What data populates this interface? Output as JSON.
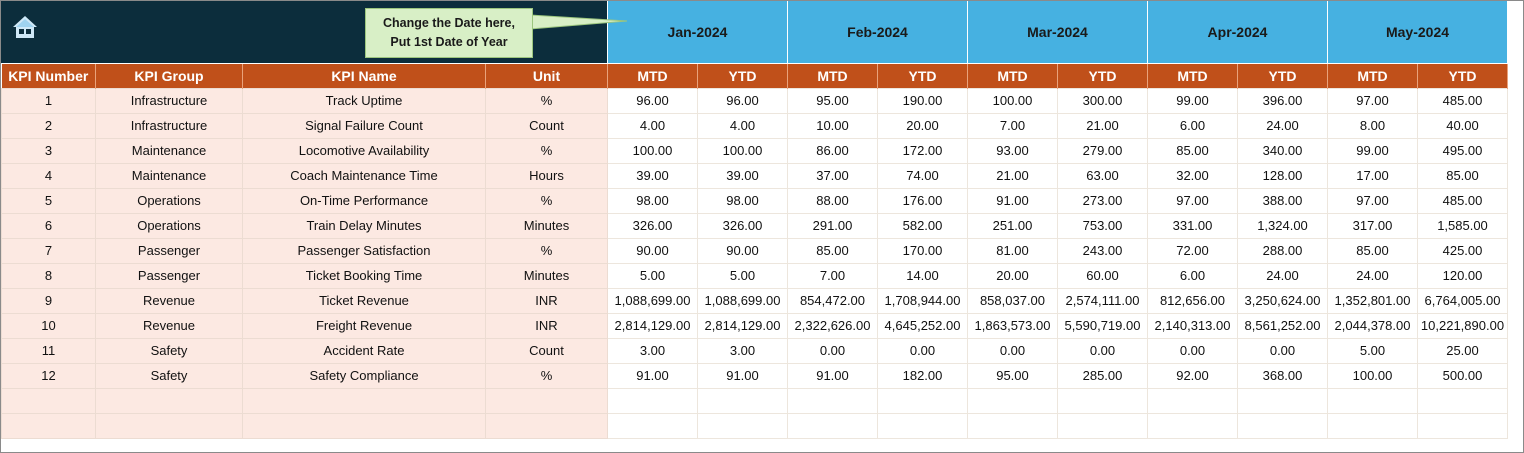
{
  "callout": {
    "line1": "Change the Date here,",
    "line2": "Put 1st Date of Year"
  },
  "months": [
    "Jan-2024",
    "Feb-2024",
    "Mar-2024",
    "Apr-2024",
    "May-2024"
  ],
  "headers": {
    "kpi_number": "KPI Number",
    "kpi_group": "KPI Group",
    "kpi_name": "KPI Name",
    "unit": "Unit",
    "mtd": "MTD",
    "ytd": "YTD"
  },
  "rows": [
    [
      "1",
      "Infrastructure",
      "Track Uptime",
      "%",
      "96.00",
      "96.00",
      "95.00",
      "190.00",
      "100.00",
      "300.00",
      "99.00",
      "396.00",
      "97.00",
      "485.00"
    ],
    [
      "2",
      "Infrastructure",
      "Signal Failure Count",
      "Count",
      "4.00",
      "4.00",
      "10.00",
      "20.00",
      "7.00",
      "21.00",
      "6.00",
      "24.00",
      "8.00",
      "40.00"
    ],
    [
      "3",
      "Maintenance",
      "Locomotive Availability",
      "%",
      "100.00",
      "100.00",
      "86.00",
      "172.00",
      "93.00",
      "279.00",
      "85.00",
      "340.00",
      "99.00",
      "495.00"
    ],
    [
      "4",
      "Maintenance",
      "Coach Maintenance Time",
      "Hours",
      "39.00",
      "39.00",
      "37.00",
      "74.00",
      "21.00",
      "63.00",
      "32.00",
      "128.00",
      "17.00",
      "85.00"
    ],
    [
      "5",
      "Operations",
      "On-Time Performance",
      "%",
      "98.00",
      "98.00",
      "88.00",
      "176.00",
      "91.00",
      "273.00",
      "97.00",
      "388.00",
      "97.00",
      "485.00"
    ],
    [
      "6",
      "Operations",
      "Train Delay Minutes",
      "Minutes",
      "326.00",
      "326.00",
      "291.00",
      "582.00",
      "251.00",
      "753.00",
      "331.00",
      "1,324.00",
      "317.00",
      "1,585.00"
    ],
    [
      "7",
      "Passenger",
      "Passenger Satisfaction",
      "%",
      "90.00",
      "90.00",
      "85.00",
      "170.00",
      "81.00",
      "243.00",
      "72.00",
      "288.00",
      "85.00",
      "425.00"
    ],
    [
      "8",
      "Passenger",
      "Ticket Booking Time",
      "Minutes",
      "5.00",
      "5.00",
      "7.00",
      "14.00",
      "20.00",
      "60.00",
      "6.00",
      "24.00",
      "24.00",
      "120.00"
    ],
    [
      "9",
      "Revenue",
      "Ticket Revenue",
      "INR",
      "1,088,699.00",
      "1,088,699.00",
      "854,472.00",
      "1,708,944.00",
      "858,037.00",
      "2,574,111.00",
      "812,656.00",
      "3,250,624.00",
      "1,352,801.00",
      "6,764,005.00"
    ],
    [
      "10",
      "Revenue",
      "Freight Revenue",
      "INR",
      "2,814,129.00",
      "2,814,129.00",
      "2,322,626.00",
      "4,645,252.00",
      "1,863,573.00",
      "5,590,719.00",
      "2,140,313.00",
      "8,561,252.00",
      "2,044,378.00",
      "10,221,890.00"
    ],
    [
      "11",
      "Safety",
      "Accident Rate",
      "Count",
      "3.00",
      "3.00",
      "0.00",
      "0.00",
      "0.00",
      "0.00",
      "0.00",
      "0.00",
      "5.00",
      "25.00"
    ],
    [
      "12",
      "Safety",
      "Safety Compliance",
      "%",
      "91.00",
      "91.00",
      "91.00",
      "182.00",
      "95.00",
      "285.00",
      "92.00",
      "368.00",
      "100.00",
      "500.00"
    ],
    [
      "",
      "",
      "",
      "",
      "",
      "",
      "",
      "",
      "",
      "",
      "",
      "",
      "",
      ""
    ],
    [
      "",
      "",
      "",
      "",
      "",
      "",
      "",
      "",
      "",
      "",
      "",
      "",
      "",
      ""
    ]
  ]
}
